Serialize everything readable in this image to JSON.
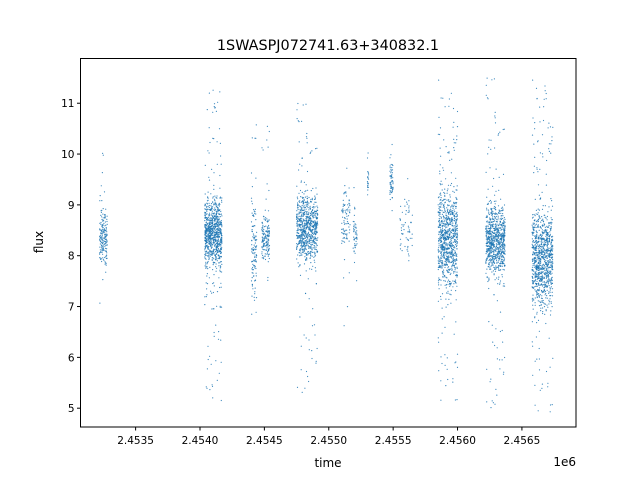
{
  "chart_data": {
    "type": "scatter",
    "title": "1SWASPJ072741.63+340832.1",
    "xlabel": "time",
    "ylabel": "flux",
    "x_offset_label": "1e6",
    "xlim": [
      2453072,
      2456920
    ],
    "ylim": [
      4.63,
      11.88
    ],
    "xticks": [
      2453500,
      2454000,
      2454500,
      2455000,
      2455500,
      2456000,
      2456500
    ],
    "xtick_labels": [
      "2.4535",
      "2.4540",
      "2.4545",
      "2.4550",
      "2.4555",
      "2.4560",
      "2.4565"
    ],
    "yticks": [
      5,
      6,
      7,
      8,
      9,
      10,
      11
    ],
    "ytick_labels": [
      "5",
      "6",
      "7",
      "8",
      "9",
      "10",
      "11"
    ],
    "grid": false,
    "marker_color": "#1f77b4",
    "observing_seasons": [
      {
        "t": [
          2453220,
          2453280
        ],
        "core": [
          7.6,
          9.1
        ],
        "range": [
          6.5,
          10.1
        ],
        "n": 180
      },
      {
        "t": [
          2454037,
          2454170
        ],
        "core": [
          7.5,
          9.4
        ],
        "range": [
          5.1,
          11.4
        ],
        "n": 900
      },
      {
        "t": [
          2454400,
          2454440
        ],
        "core": [
          6.7,
          9.5
        ],
        "range": [
          6.5,
          11.2
        ],
        "n": 120
      },
      {
        "t": [
          2454480,
          2454540
        ],
        "core": [
          7.8,
          8.9
        ],
        "range": [
          7.4,
          10.7
        ],
        "n": 160
      },
      {
        "t": [
          2454750,
          2454915
        ],
        "core": [
          7.6,
          9.5
        ],
        "range": [
          5.3,
          11.0
        ],
        "n": 800
      },
      {
        "t": [
          2455100,
          2455165
        ],
        "core": [
          7.9,
          9.6
        ],
        "range": [
          6.6,
          9.8
        ],
        "n": 90
      },
      {
        "t": [
          2455190,
          2455220
        ],
        "core": [
          7.8,
          9.0
        ],
        "range": [
          7.5,
          9.4
        ],
        "n": 50
      },
      {
        "t": [
          2455300,
          2455310
        ],
        "core": [
          9.0,
          10.0
        ],
        "range": [
          8.8,
          10.2
        ],
        "n": 20
      },
      {
        "t": [
          2455475,
          2455500
        ],
        "core": [
          8.7,
          10.2
        ],
        "range": [
          8.5,
          10.3
        ],
        "n": 60
      },
      {
        "t": [
          2455550,
          2455650
        ],
        "core": [
          7.6,
          9.5
        ],
        "range": [
          7.4,
          9.6
        ],
        "n": 60
      },
      {
        "t": [
          2455850,
          2456000
        ],
        "core": [
          7.0,
          9.7
        ],
        "range": [
          5.0,
          11.5
        ],
        "n": 900
      },
      {
        "t": [
          2456220,
          2456370
        ],
        "core": [
          7.3,
          9.3
        ],
        "range": [
          5.0,
          11.5
        ],
        "n": 850
      },
      {
        "t": [
          2456580,
          2456740
        ],
        "core": [
          6.6,
          9.3
        ],
        "range": [
          4.9,
          11.5
        ],
        "n": 1000
      }
    ]
  }
}
